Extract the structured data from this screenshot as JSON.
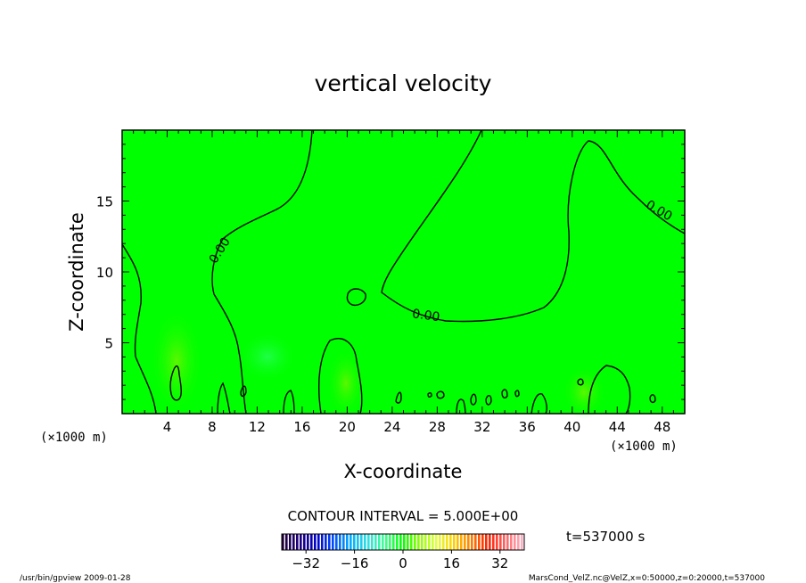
{
  "chart_data": {
    "type": "heatmap",
    "title": "vertical velocity",
    "xlabel": "X-coordinate",
    "ylabel": "Z-coordinate",
    "x_unit_left": "(×1000 m)",
    "x_unit_right": "(×1000 m)",
    "xlim": [
      0,
      50
    ],
    "ylim": [
      0,
      20
    ],
    "x_ticks": [
      4,
      8,
      12,
      16,
      20,
      24,
      28,
      32,
      36,
      40,
      44,
      48
    ],
    "y_ticks": [
      5,
      10,
      15
    ],
    "contour_labels": [
      {
        "text": "0.00",
        "x": 8.7,
        "y": 11.5
      },
      {
        "text": "0.00",
        "x": 27.0,
        "y": 6.9
      },
      {
        "text": "0.00",
        "x": 47.7,
        "y": 14.3
      }
    ],
    "contour_interval_text": "CONTOUR INTERVAL = 5.000E+00",
    "colorbar": {
      "range": [
        -40,
        40
      ],
      "ticks": [
        -32,
        -16,
        0,
        16,
        32
      ],
      "colors": [
        "#20003a",
        "#1a0080",
        "#0000cc",
        "#0050ff",
        "#00b0ff",
        "#30e0e0",
        "#40ff90",
        "#00ff00",
        "#90ff00",
        "#e0ff40",
        "#ffd000",
        "#ff8000",
        "#ff2000",
        "#ff6060",
        "#ffb0c0"
      ]
    },
    "field_color": "#00ff00",
    "time_label": "t=537000 s"
  },
  "footer": {
    "left": "/usr/bin/gpview  2009-01-28",
    "right": "MarsCond_VelZ.nc@VelZ,x=0:50000,z=0:20000,t=537000"
  }
}
